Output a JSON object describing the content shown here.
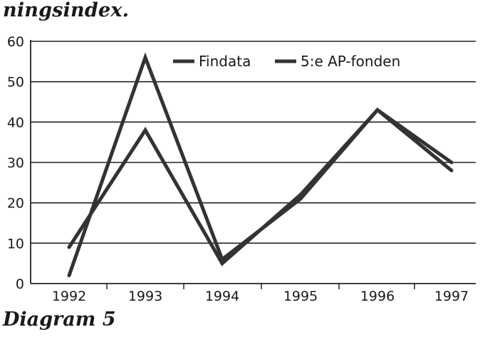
{
  "header_text": "ningsindex.",
  "caption": "Diagram 5",
  "chart_data": {
    "type": "line",
    "title": "",
    "xlabel": "",
    "ylabel": "",
    "x": [
      "1992",
      "1993",
      "1994",
      "1995",
      "1996",
      "1997"
    ],
    "ylim": [
      0,
      60
    ],
    "yticks": [
      0,
      10,
      20,
      30,
      40,
      50,
      60
    ],
    "grid": true,
    "legend_position": "top-right",
    "series": [
      {
        "name": "Findata",
        "values": [
          2,
          56,
          6,
          21,
          43,
          30
        ]
      },
      {
        "name": "5:e AP-fonden",
        "values": [
          9,
          38,
          5,
          22,
          43,
          28
        ]
      }
    ],
    "colors": {
      "line": "#333333",
      "grid": "#222222"
    }
  }
}
